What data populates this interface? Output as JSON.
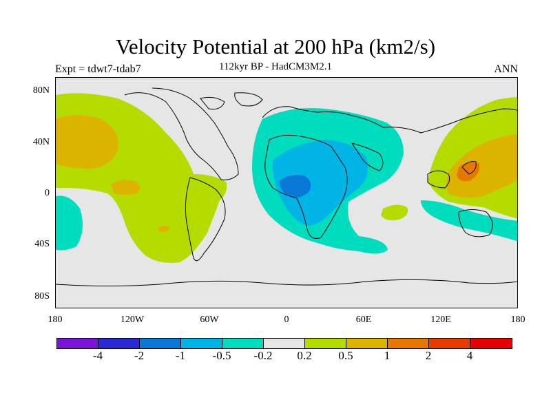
{
  "title": "Velocity Potential at 200 hPa (km2/s)",
  "subtitle": "112kyr BP - HadCM3M2.1",
  "left_label": "Expt = tdwt7-tdab7",
  "right_label": "ANN",
  "lat_ticks": [
    "80N",
    "40N",
    "0",
    "40S",
    "80S"
  ],
  "lon_ticks": [
    "180",
    "120W",
    "60W",
    "0",
    "60E",
    "120E",
    "180"
  ],
  "colorbar": {
    "labels": [
      "-4",
      "-2",
      "-1",
      "-0.5",
      "-0.2",
      "0.2",
      "0.5",
      "1",
      "2",
      "4"
    ],
    "colors": [
      "#7a15d8",
      "#2a2ad5",
      "#0a78d6",
      "#00b4e6",
      "#00dcbe",
      "#e6e6e6",
      "#b4dc00",
      "#dcb400",
      "#e67800",
      "#e63c00",
      "#e60000"
    ]
  },
  "colors": {
    "background": "#e6e6e6",
    "pos_weak": "#b4dc00",
    "pos_mid": "#dcb400",
    "pos_strong": "#e67800",
    "neg_weak": "#00dcbe",
    "neg_mid": "#00b4e6",
    "neg_strong": "#0a78d6"
  }
}
